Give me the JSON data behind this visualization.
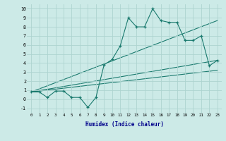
{
  "xlabel": "Humidex (Indice chaleur)",
  "xlim": [
    -0.5,
    23.5
  ],
  "ylim": [
    -1.5,
    10.5
  ],
  "xticks": [
    0,
    1,
    2,
    3,
    4,
    5,
    6,
    7,
    8,
    9,
    10,
    11,
    12,
    13,
    14,
    15,
    16,
    17,
    18,
    19,
    20,
    21,
    22,
    23
  ],
  "yticks": [
    -1,
    0,
    1,
    2,
    3,
    4,
    5,
    6,
    7,
    8,
    9,
    10
  ],
  "bg_color": "#cceae7",
  "grid_color": "#add4d0",
  "line_color": "#1a7a6e",
  "series1_x": [
    0,
    1,
    2,
    3,
    4,
    5,
    6,
    7,
    8,
    9,
    10,
    11,
    12,
    13,
    14,
    15,
    16,
    17,
    18,
    19,
    20,
    21,
    22,
    23
  ],
  "series1_y": [
    0.8,
    0.8,
    0.2,
    0.9,
    0.9,
    0.2,
    0.2,
    -0.9,
    0.2,
    3.8,
    4.4,
    5.9,
    9.0,
    8.0,
    8.0,
    10.0,
    8.7,
    8.5,
    8.5,
    6.5,
    6.5,
    7.0,
    3.7,
    4.3
  ],
  "reg_lines": [
    {
      "x": [
        0,
        23
      ],
      "y": [
        0.8,
        4.3
      ]
    },
    {
      "x": [
        0,
        23
      ],
      "y": [
        0.8,
        8.7
      ]
    },
    {
      "x": [
        0,
        23
      ],
      "y": [
        0.8,
        3.2
      ]
    }
  ]
}
